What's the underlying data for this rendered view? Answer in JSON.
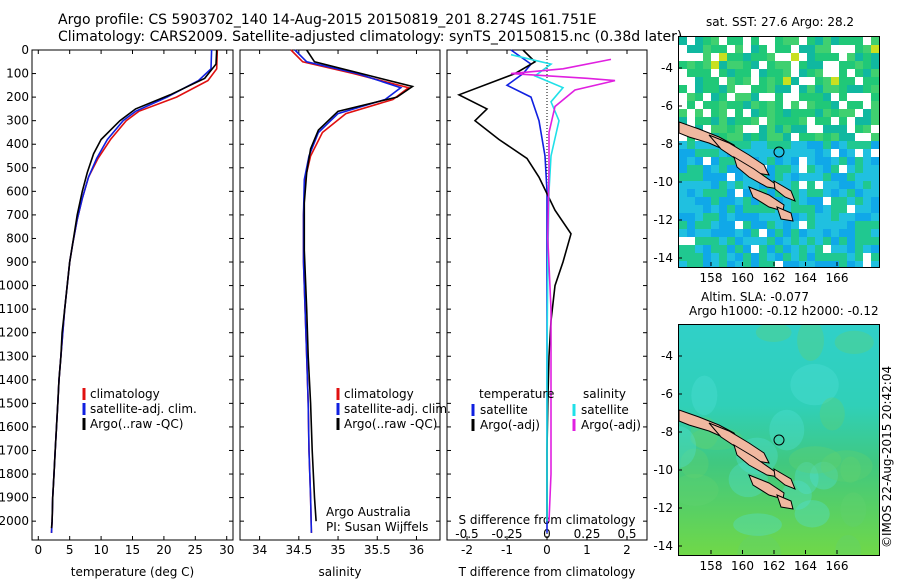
{
  "header": {
    "line1": "Argo profile: CS 5903702_140 14-Aug-2015 20150819_201 8.274S 161.751E",
    "line2": "Climatology: CARS2009. Satellite-adjusted climatology: synTS_20150815.nc (0.38d later)"
  },
  "colors": {
    "climatology": "#e01010",
    "satellite": "#1020e0",
    "argo": "#000000",
    "sal_satellite": "#20e0e8",
    "sal_argo": "#e020e0"
  },
  "chart_data": [
    {
      "type": "line",
      "id": "temperature",
      "xlabel": "temperature (deg C)",
      "ylabel": "",
      "xlim": [
        -1,
        31
      ],
      "ylim": [
        2080,
        0
      ],
      "x_ticks": [
        0,
        5,
        10,
        15,
        20,
        25,
        30
      ],
      "y_ticks": [
        0,
        100,
        200,
        300,
        400,
        500,
        600,
        700,
        800,
        900,
        1000,
        1100,
        1200,
        1300,
        1400,
        1500,
        1600,
        1700,
        1800,
        1900,
        2000
      ],
      "legend": [
        "climatology",
        "satellite-adj. clim.",
        "Argo(..raw -QC)"
      ],
      "series": [
        {
          "name": "climatology",
          "color_key": "climatology",
          "points": [
            [
              28.5,
              0
            ],
            [
              28.4,
              80
            ],
            [
              27,
              130
            ],
            [
              22,
              200
            ],
            [
              16,
              260
            ],
            [
              14,
              300
            ],
            [
              11.5,
              380
            ],
            [
              9.5,
              460
            ],
            [
              8,
              540
            ],
            [
              7,
              630
            ],
            [
              6.2,
              720
            ],
            [
              5.5,
              820
            ],
            [
              5,
              900
            ],
            [
              4.6,
              1000
            ],
            [
              4.2,
              1100
            ],
            [
              3.9,
              1200
            ],
            [
              3.6,
              1300
            ],
            [
              3.3,
              1400
            ],
            [
              3.1,
              1500
            ],
            [
              2.9,
              1600
            ],
            [
              2.7,
              1700
            ],
            [
              2.5,
              1800
            ],
            [
              2.3,
              1900
            ],
            [
              2.2,
              2000
            ],
            [
              2.1,
              2050
            ]
          ]
        },
        {
          "name": "satellite-adj. clim.",
          "color_key": "satellite",
          "points": [
            [
              27.6,
              0
            ],
            [
              27.5,
              80
            ],
            [
              25.5,
              130
            ],
            [
              20.5,
              200
            ],
            [
              15.5,
              260
            ],
            [
              13.5,
              300
            ],
            [
              11,
              380
            ],
            [
              9.3,
              460
            ],
            [
              8,
              540
            ],
            [
              7,
              630
            ],
            [
              6.2,
              720
            ],
            [
              5.5,
              820
            ],
            [
              5,
              900
            ],
            [
              4.6,
              1000
            ],
            [
              4.2,
              1100
            ],
            [
              3.9,
              1200
            ],
            [
              3.6,
              1300
            ],
            [
              3.3,
              1400
            ],
            [
              3.1,
              1500
            ],
            [
              2.9,
              1600
            ],
            [
              2.7,
              1700
            ],
            [
              2.5,
              1800
            ],
            [
              2.3,
              1900
            ],
            [
              2.2,
              2000
            ],
            [
              2.1,
              2050
            ]
          ]
        },
        {
          "name": "Argo(..raw -QC)",
          "color_key": "argo",
          "points": [
            [
              28.4,
              0
            ],
            [
              28.3,
              60
            ],
            [
              26.5,
              120
            ],
            [
              21,
              190
            ],
            [
              15.5,
              250
            ],
            [
              13,
              300
            ],
            [
              10,
              380
            ],
            [
              8.8,
              440
            ],
            [
              7.8,
              520
            ],
            [
              7,
              600
            ],
            [
              6.2,
              700
            ],
            [
              5.6,
              800
            ],
            [
              5,
              900
            ],
            [
              4.6,
              1000
            ],
            [
              4.2,
              1100
            ],
            [
              3.8,
              1200
            ],
            [
              3.6,
              1300
            ],
            [
              3.3,
              1400
            ],
            [
              3.1,
              1500
            ],
            [
              2.9,
              1600
            ],
            [
              2.7,
              1700
            ],
            [
              2.5,
              1800
            ],
            [
              2.3,
              1900
            ],
            [
              2.2,
              2000
            ],
            [
              2.1,
              2030
            ]
          ]
        }
      ]
    },
    {
      "type": "line",
      "id": "salinity",
      "xlabel": "salinity",
      "xlim": [
        33.75,
        36.3
      ],
      "ylim": [
        2080,
        0
      ],
      "x_ticks": [
        34,
        34.5,
        35,
        35.5,
        36
      ],
      "x_tick_labels": [
        "34",
        "34.5",
        "35",
        "35.5",
        "36"
      ],
      "legend": [
        "climatology",
        "satellite-adj. clim.",
        "Argo(..raw -QC)"
      ],
      "annotation": [
        "Argo Australia",
        "PI: Susan Wijffels"
      ],
      "series": [
        {
          "name": "climatology",
          "color_key": "climatology",
          "points": [
            [
              34.4,
              0
            ],
            [
              34.55,
              50
            ],
            [
              35.2,
              100
            ],
            [
              35.9,
              160
            ],
            [
              35.7,
              210
            ],
            [
              35.1,
              270
            ],
            [
              34.8,
              350
            ],
            [
              34.65,
              450
            ],
            [
              34.58,
              550
            ],
            [
              34.56,
              700
            ],
            [
              34.56,
              900
            ],
            [
              34.58,
              1100
            ],
            [
              34.6,
              1300
            ],
            [
              34.62,
              1500
            ],
            [
              34.63,
              1700
            ],
            [
              34.65,
              1900
            ],
            [
              34.66,
              2050
            ]
          ]
        },
        {
          "name": "satellite-adj. clim.",
          "color_key": "satellite",
          "points": [
            [
              34.45,
              0
            ],
            [
              34.6,
              50
            ],
            [
              35.25,
              100
            ],
            [
              35.8,
              160
            ],
            [
              35.6,
              210
            ],
            [
              35.0,
              270
            ],
            [
              34.75,
              350
            ],
            [
              34.63,
              450
            ],
            [
              34.57,
              550
            ],
            [
              34.56,
              700
            ],
            [
              34.56,
              900
            ],
            [
              34.58,
              1100
            ],
            [
              34.6,
              1300
            ],
            [
              34.62,
              1500
            ],
            [
              34.63,
              1700
            ],
            [
              34.65,
              1900
            ],
            [
              34.66,
              2050
            ]
          ]
        },
        {
          "name": "Argo(..raw -QC)",
          "color_key": "argo",
          "points": [
            [
              34.6,
              0
            ],
            [
              34.7,
              50
            ],
            [
              35.3,
              100
            ],
            [
              35.95,
              155
            ],
            [
              35.75,
              200
            ],
            [
              35.0,
              260
            ],
            [
              34.75,
              340
            ],
            [
              34.65,
              420
            ],
            [
              34.6,
              520
            ],
            [
              34.57,
              650
            ],
            [
              34.57,
              850
            ],
            [
              34.6,
              1100
            ],
            [
              34.62,
              1300
            ],
            [
              34.65,
              1500
            ],
            [
              34.67,
              1700
            ],
            [
              34.7,
              1900
            ],
            [
              34.72,
              2000
            ]
          ]
        }
      ]
    },
    {
      "type": "line",
      "id": "differences",
      "xlabel": "T difference from climatology",
      "xlabel_top": "S difference from climatology",
      "xlim": [
        -2.5,
        2.5
      ],
      "ylim": [
        2080,
        0
      ],
      "x_ticks": [
        -2,
        -1,
        0,
        1,
        2
      ],
      "x_tick_labels": [
        "-2",
        "-1",
        "0",
        "1",
        "2"
      ],
      "top_ticks": [
        -0.5,
        -0.25,
        0,
        0.25,
        0.5
      ],
      "top_tick_labels": [
        "-0.5",
        "-0.25",
        "0",
        "0.25",
        "0.5"
      ],
      "legend": {
        "temperature_heading": "temperature",
        "salinity_heading": "salinity",
        "temperature": [
          "satellite",
          "Argo(-adj)"
        ],
        "salinity": [
          "satellite",
          "Argo(-adj)"
        ]
      },
      "series": [
        {
          "name": "satellite",
          "group": "temperature",
          "color_key": "satellite",
          "points": [
            [
              -0.9,
              0
            ],
            [
              -0.4,
              60
            ],
            [
              -0.6,
              100
            ],
            [
              -1.0,
              150
            ],
            [
              -0.4,
              200
            ],
            [
              -0.2,
              300
            ],
            [
              -0.05,
              450
            ],
            [
              0,
              600
            ],
            [
              0,
              900
            ],
            [
              0,
              1200
            ],
            [
              0,
              1500
            ],
            [
              0,
              1800
            ],
            [
              0,
              2050
            ]
          ]
        },
        {
          "name": "Argo(-adj)",
          "group": "temperature",
          "color_key": "argo",
          "points": [
            [
              -0.6,
              0
            ],
            [
              -0.3,
              50
            ],
            [
              -0.8,
              100
            ],
            [
              -2.2,
              190
            ],
            [
              -1.5,
              250
            ],
            [
              -1.8,
              300
            ],
            [
              -1.2,
              380
            ],
            [
              -0.5,
              460
            ],
            [
              -0.2,
              540
            ],
            [
              0.2,
              680
            ],
            [
              0.6,
              780
            ],
            [
              0.4,
              900
            ],
            [
              0.2,
              1000
            ],
            [
              0.1,
              1150
            ],
            [
              0.05,
              1300
            ],
            [
              0.02,
              1500
            ],
            [
              0,
              1700
            ],
            [
              0,
              2000
            ]
          ]
        },
        {
          "name": "satellite",
          "group": "salinity",
          "color_key": "sal_satellite",
          "points": [
            [
              -0.9,
              20
            ],
            [
              0.1,
              60
            ],
            [
              -0.3,
              110
            ],
            [
              0.4,
              160
            ],
            [
              0.1,
              220
            ],
            [
              0.3,
              300
            ],
            [
              0.1,
              450
            ],
            [
              0.05,
              600
            ],
            [
              0.02,
              900
            ],
            [
              0,
              1300
            ],
            [
              0,
              2000
            ]
          ]
        },
        {
          "name": "Argo(-adj)",
          "group": "salinity",
          "color_key": "sal_argo",
          "points": [
            [
              1.6,
              40
            ],
            [
              0.4,
              80
            ],
            [
              -0.9,
              100
            ],
            [
              1.0,
              120
            ],
            [
              1.7,
              130
            ],
            [
              0.7,
              170
            ],
            [
              0.2,
              240
            ],
            [
              0.05,
              350
            ],
            [
              0.05,
              500
            ],
            [
              0.02,
              800
            ],
            [
              0.1,
              1100
            ],
            [
              0.1,
              1500
            ],
            [
              0.1,
              1800
            ],
            [
              0.05,
              2000
            ]
          ]
        }
      ]
    }
  ],
  "maps": {
    "sst": {
      "title": "sat. SST: 27.6 Argo: 28.2",
      "x_ticks": [
        "158",
        "160",
        "162",
        "164",
        "166"
      ],
      "y_ticks": [
        "-4",
        "-6",
        "-8",
        "-10",
        "-12",
        "-14"
      ]
    },
    "sla": {
      "title_line1": "Altim. SLA: -0.077",
      "title_line2": "Argo h1000: -0.12 h2000: -0.12",
      "x_ticks": [
        "158",
        "160",
        "162",
        "164",
        "166"
      ],
      "y_ticks": [
        "-4",
        "-6",
        "-8",
        "-10",
        "-12",
        "-14"
      ]
    }
  },
  "watermark": "©IMOS 22-Aug-2015 20:42:04"
}
